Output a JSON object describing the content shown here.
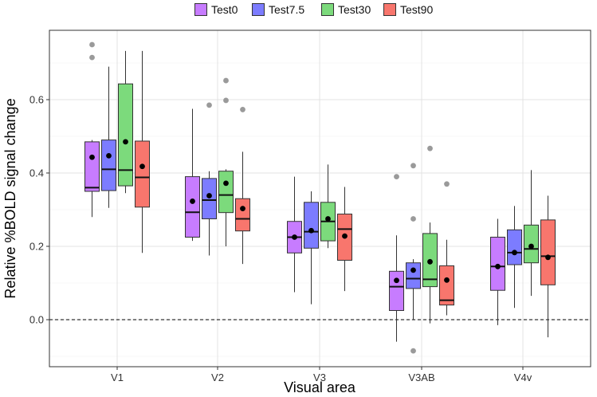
{
  "chart_data": {
    "type": "box",
    "xlabel": "Visual area",
    "ylabel": "Relative %BOLD signal change",
    "categories": [
      "V1",
      "V2",
      "V3",
      "V3AB",
      "V4v"
    ],
    "ylim": [
      -0.13,
      0.8
    ],
    "yticks": [
      0.0,
      0.2,
      0.4,
      0.6
    ],
    "ytick_labels": [
      "0.0",
      "0.2",
      "0.4",
      "0.6"
    ],
    "reference_line": {
      "y": 0.0,
      "style": "dashed"
    },
    "grid": true,
    "legend_position": "top",
    "series": [
      {
        "name": "Test0",
        "color": "#C77CFF",
        "boxes": [
          {
            "whisker_low": 0.28,
            "q1": 0.35,
            "median": 0.36,
            "q3": 0.485,
            "whisker_high": 0.49,
            "mean": 0.443,
            "outliers": [
              0.75,
              0.715
            ]
          },
          {
            "whisker_low": 0.215,
            "q1": 0.225,
            "median": 0.293,
            "q3": 0.39,
            "whisker_high": 0.575,
            "mean": 0.323,
            "outliers": []
          },
          {
            "whisker_low": 0.075,
            "q1": 0.182,
            "median": 0.225,
            "q3": 0.268,
            "whisker_high": 0.39,
            "mean": 0.225,
            "outliers": []
          },
          {
            "whisker_low": -0.06,
            "q1": 0.025,
            "median": 0.09,
            "q3": 0.132,
            "whisker_high": 0.23,
            "mean": 0.107,
            "outliers": [
              0.39
            ]
          },
          {
            "whisker_low": -0.015,
            "q1": 0.08,
            "median": 0.145,
            "q3": 0.225,
            "whisker_high": 0.275,
            "mean": 0.145,
            "outliers": []
          }
        ]
      },
      {
        "name": "Test7.5",
        "color": "#7C7CFF",
        "boxes": [
          {
            "whisker_low": 0.305,
            "q1": 0.352,
            "median": 0.41,
            "q3": 0.49,
            "whisker_high": 0.69,
            "mean": 0.447,
            "outliers": []
          },
          {
            "whisker_low": 0.175,
            "q1": 0.275,
            "median": 0.326,
            "q3": 0.385,
            "whisker_high": 0.405,
            "mean": 0.338,
            "outliers": [
              0.585
            ]
          },
          {
            "whisker_low": 0.042,
            "q1": 0.195,
            "median": 0.24,
            "q3": 0.32,
            "whisker_high": 0.35,
            "mean": 0.243,
            "outliers": []
          },
          {
            "whisker_low": 0.0,
            "q1": 0.085,
            "median": 0.112,
            "q3": 0.155,
            "whisker_high": 0.165,
            "mean": 0.135,
            "outliers": [
              0.42,
              0.275,
              -0.085
            ]
          },
          {
            "whisker_low": 0.032,
            "q1": 0.15,
            "median": 0.183,
            "q3": 0.245,
            "whisker_high": 0.31,
            "mean": 0.183,
            "outliers": []
          }
        ]
      },
      {
        "name": "Test30",
        "color": "#7CDA7C",
        "boxes": [
          {
            "whisker_low": 0.345,
            "q1": 0.365,
            "median": 0.408,
            "q3": 0.643,
            "whisker_high": 0.733,
            "mean": 0.485,
            "outliers": []
          },
          {
            "whisker_low": 0.2,
            "q1": 0.292,
            "median": 0.34,
            "q3": 0.405,
            "whisker_high": 0.41,
            "mean": 0.372,
            "outliers": [
              0.652,
              0.598
            ]
          },
          {
            "whisker_low": 0.195,
            "q1": 0.215,
            "median": 0.268,
            "q3": 0.32,
            "whisker_high": 0.423,
            "mean": 0.275,
            "outliers": []
          },
          {
            "whisker_low": -0.01,
            "q1": 0.09,
            "median": 0.11,
            "q3": 0.235,
            "whisker_high": 0.265,
            "mean": 0.158,
            "outliers": [
              0.467
            ]
          },
          {
            "whisker_low": 0.065,
            "q1": 0.155,
            "median": 0.193,
            "q3": 0.258,
            "whisker_high": 0.408,
            "mean": 0.2,
            "outliers": []
          }
        ]
      },
      {
        "name": "Test90",
        "color": "#F8766D",
        "boxes": [
          {
            "whisker_low": 0.182,
            "q1": 0.307,
            "median": 0.388,
            "q3": 0.487,
            "whisker_high": 0.733,
            "mean": 0.418,
            "outliers": []
          },
          {
            "whisker_low": 0.152,
            "q1": 0.242,
            "median": 0.275,
            "q3": 0.33,
            "whisker_high": 0.458,
            "mean": 0.303,
            "outliers": [
              0.573
            ]
          },
          {
            "whisker_low": 0.078,
            "q1": 0.162,
            "median": 0.247,
            "q3": 0.288,
            "whisker_high": 0.362,
            "mean": 0.228,
            "outliers": []
          },
          {
            "whisker_low": 0.012,
            "q1": 0.04,
            "median": 0.053,
            "q3": 0.147,
            "whisker_high": 0.218,
            "mean": 0.108,
            "outliers": [
              0.37
            ]
          },
          {
            "whisker_low": -0.048,
            "q1": 0.095,
            "median": 0.173,
            "q3": 0.272,
            "whisker_high": 0.338,
            "mean": 0.17,
            "outliers": []
          }
        ]
      }
    ]
  }
}
